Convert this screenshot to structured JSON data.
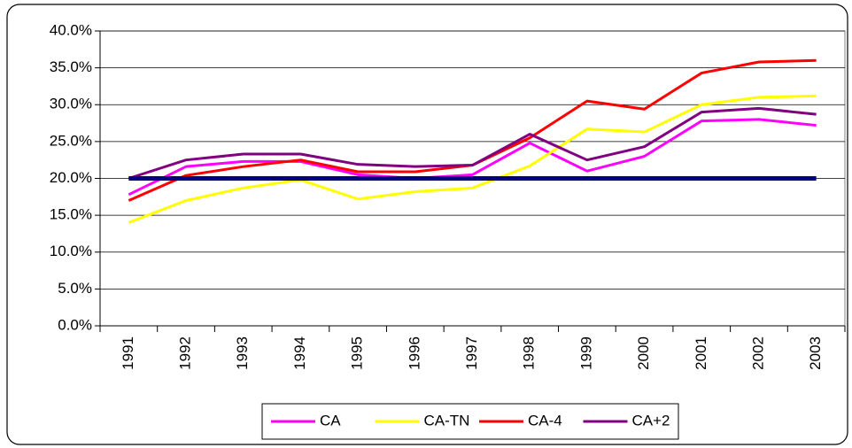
{
  "chart_data": {
    "type": "line",
    "categories": [
      "1991",
      "1992",
      "1993",
      "1994",
      "1995",
      "1996",
      "1997",
      "1998",
      "1999",
      "2000",
      "2001",
      "2002",
      "2003"
    ],
    "series": [
      {
        "name": "CA",
        "color": "#ff00ff",
        "values": [
          17.8,
          21.6,
          22.3,
          22.3,
          20.5,
          20.0,
          20.5,
          24.8,
          21.0,
          23.0,
          27.8,
          28.0,
          27.2
        ]
      },
      {
        "name": "CA-TN",
        "color": "#ffff00",
        "values": [
          14.0,
          17.0,
          18.7,
          19.8,
          17.2,
          18.2,
          18.7,
          21.7,
          26.7,
          26.3,
          30.0,
          31.0,
          31.2
        ]
      },
      {
        "name": "CA-4",
        "color": "#ff0000",
        "values": [
          17.0,
          20.4,
          21.6,
          22.5,
          20.9,
          20.9,
          21.8,
          25.5,
          30.5,
          29.4,
          34.3,
          35.8,
          36.0
        ]
      },
      {
        "name": "CA+2",
        "color": "#800080",
        "values": [
          20.0,
          22.5,
          23.3,
          23.3,
          21.9,
          21.6,
          21.8,
          26.0,
          22.5,
          24.3,
          29.0,
          29.5,
          28.7
        ]
      },
      {
        "color": "#000080",
        "values": [
          20,
          20,
          20,
          20,
          20,
          20,
          20,
          20,
          20,
          20,
          20,
          20,
          20
        ]
      }
    ],
    "ylim": [
      0,
      40
    ],
    "yticks": [
      {
        "value": 0,
        "label": "0.0%"
      },
      {
        "value": 5,
        "label": "5.0%"
      },
      {
        "value": 10,
        "label": "10.0%"
      },
      {
        "value": 15,
        "label": "15.0%"
      },
      {
        "value": 20,
        "label": "20.0%"
      },
      {
        "value": 25,
        "label": "25.0%"
      },
      {
        "value": 30,
        "label": "30.0%"
      },
      {
        "value": 35,
        "label": "35.0%"
      },
      {
        "value": 40,
        "label": "40.0%"
      }
    ],
    "grid": true,
    "legend": "bottom"
  }
}
